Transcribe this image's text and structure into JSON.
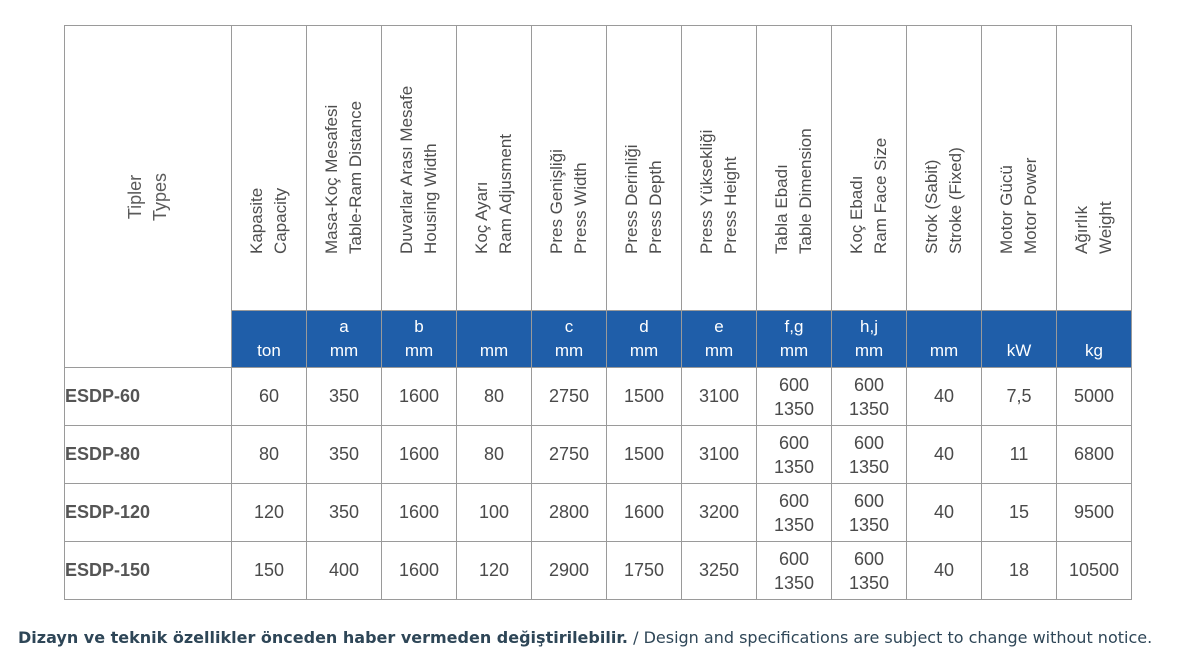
{
  "types_header": {
    "tr": "Tipler",
    "en": "Types"
  },
  "columns": [
    {
      "tr": "Kapasite",
      "en": "Capacity",
      "letter": "",
      "unit": "ton"
    },
    {
      "tr": "Masa-Koç Mesafesi",
      "en": "Table-Ram Distance",
      "letter": "a",
      "unit": "mm"
    },
    {
      "tr": "Duvarlar Arası Mesafe",
      "en": "Housing Width",
      "letter": "b",
      "unit": "mm"
    },
    {
      "tr": "Koç Ayarı",
      "en": "Ram Adjusment",
      "letter": "",
      "unit": "mm"
    },
    {
      "tr": "Pres Genişliği",
      "en": "Press Width",
      "letter": "c",
      "unit": "mm"
    },
    {
      "tr": "Press Derinliği",
      "en": "Press Depth",
      "letter": "d",
      "unit": "mm"
    },
    {
      "tr": "Press Yüksekliği",
      "en": "Press Height",
      "letter": "e",
      "unit": "mm"
    },
    {
      "tr": "Tabla Ebadı",
      "en": "Table Dimension",
      "letter": "f,g",
      "unit": "mm"
    },
    {
      "tr": "Koç Ebadı",
      "en": "Ram Face Size",
      "letter": "h,j",
      "unit": "mm"
    },
    {
      "tr": "Strok (Sabit)",
      "en": "Stroke (Fixed)",
      "letter": "",
      "unit": "mm"
    },
    {
      "tr": "Motor Gücü",
      "en": "Motor Power",
      "letter": "",
      "unit": "kW"
    },
    {
      "tr": "Ağırlık",
      "en": "Weight",
      "letter": "",
      "unit": "kg"
    }
  ],
  "rows": [
    {
      "type": "ESDP-60",
      "capacity": "60",
      "a": "350",
      "b": "1600",
      "ram_adj": "80",
      "c": "2750",
      "d": "1500",
      "e": "3100",
      "table_1": "600",
      "table_2": "1350",
      "ram_1": "600",
      "ram_2": "1350",
      "stroke": "40",
      "power": "7,5",
      "weight": "5000"
    },
    {
      "type": "ESDP-80",
      "capacity": "80",
      "a": "350",
      "b": "1600",
      "ram_adj": "80",
      "c": "2750",
      "d": "1500",
      "e": "3100",
      "table_1": "600",
      "table_2": "1350",
      "ram_1": "600",
      "ram_2": "1350",
      "stroke": "40",
      "power": "11",
      "weight": "6800"
    },
    {
      "type": "ESDP-120",
      "capacity": "120",
      "a": "350",
      "b": "1600",
      "ram_adj": "100",
      "c": "2800",
      "d": "1600",
      "e": "3200",
      "table_1": "600",
      "table_2": "1350",
      "ram_1": "600",
      "ram_2": "1350",
      "stroke": "40",
      "power": "15",
      "weight": "9500"
    },
    {
      "type": "ESDP-150",
      "capacity": "150",
      "a": "400",
      "b": "1600",
      "ram_adj": "120",
      "c": "2900",
      "d": "1750",
      "e": "3250",
      "table_1": "600",
      "table_2": "1350",
      "ram_1": "600",
      "ram_2": "1350",
      "stroke": "40",
      "power": "18",
      "weight": "10500"
    }
  ],
  "footnote": {
    "tr": "Dizayn ve teknik özellikler önceden haber vermeden değiştirilebilir.",
    "en": " / Design and specifications are subject to change without notice."
  },
  "colors": {
    "unit_band": "#1f5ea9",
    "border": "#9a9a9a",
    "footnote": "#2e4657"
  }
}
